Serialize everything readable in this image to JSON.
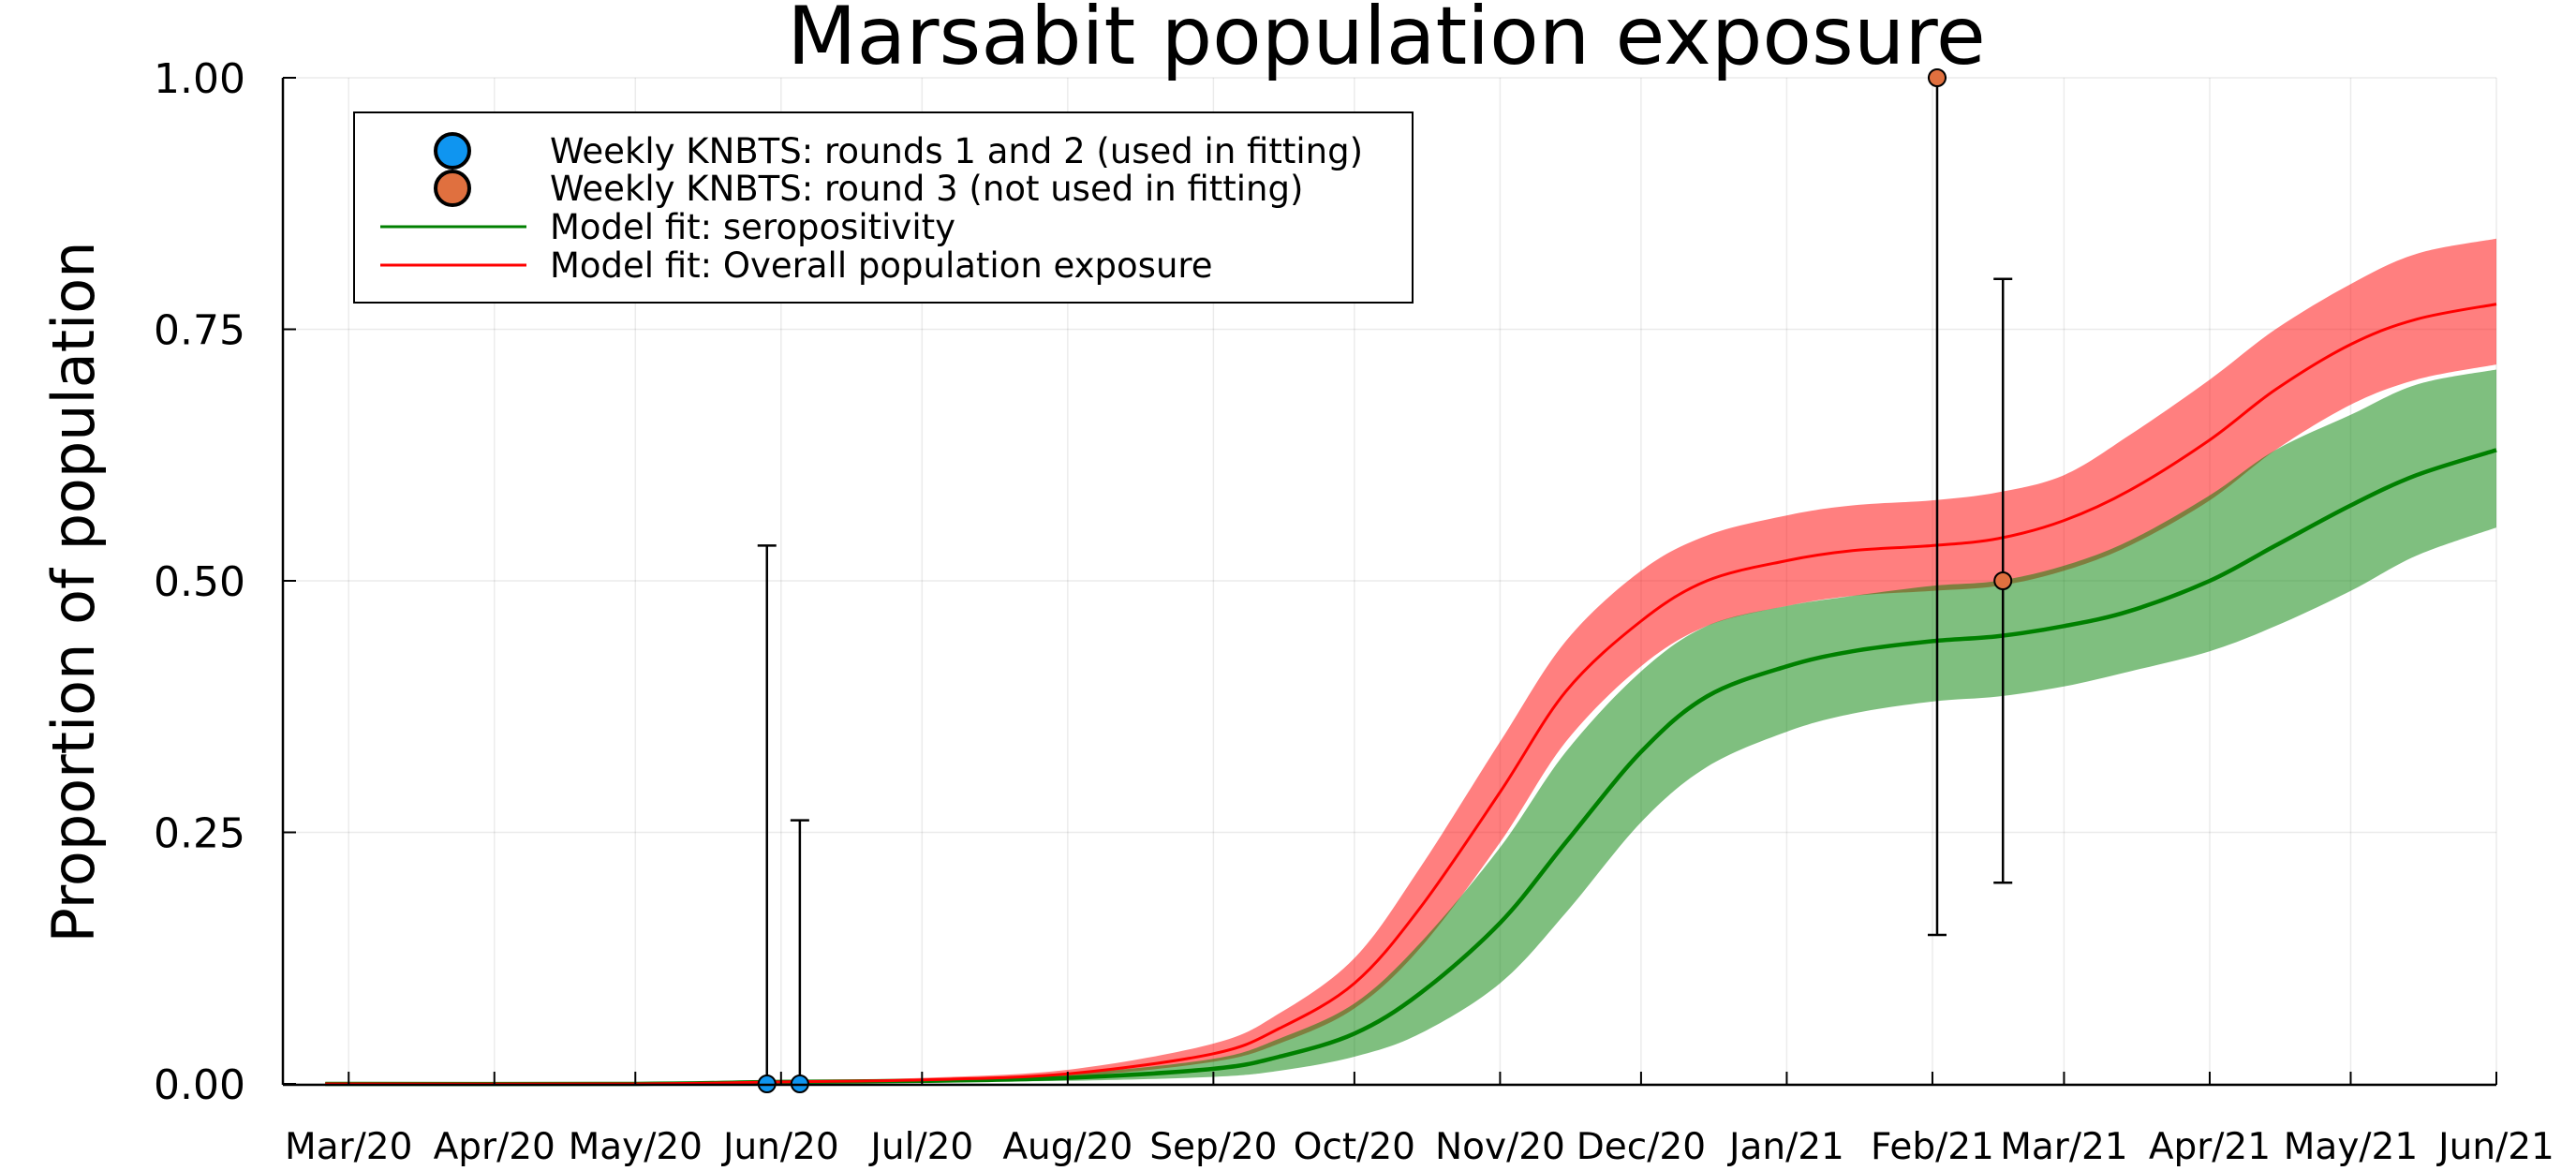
{
  "chart_data": {
    "type": "line",
    "title": "Marsabit population exposure",
    "xlabel": "",
    "ylabel": "Proportion of population",
    "xlim": [
      "2020-02-16",
      "2021-06-01"
    ],
    "ylim": [
      0,
      1
    ],
    "x_ticks": [
      "2020-03-01",
      "2020-04-01",
      "2020-05-01",
      "2020-06-01",
      "2020-07-01",
      "2020-08-01",
      "2020-09-01",
      "2020-10-01",
      "2020-11-01",
      "2020-12-01",
      "2021-01-01",
      "2021-02-01",
      "2021-03-01",
      "2021-04-01",
      "2021-05-01",
      "2021-06-01"
    ],
    "x_tick_labels": [
      "Mar/20",
      "Apr/20",
      "May/20",
      "Jun/20",
      "Jul/20",
      "Aug/20",
      "Sep/20",
      "Oct/20",
      "Nov/20",
      "Dec/20",
      "Jan/21",
      "Feb/21",
      "Mar/21",
      "Apr/21",
      "May/21",
      "Jun/21"
    ],
    "y_ticks": [
      0,
      0.25,
      0.5,
      0.75,
      1.0
    ],
    "y_tick_labels": [
      "0.00",
      "0.25",
      "0.50",
      "0.75",
      "1.00"
    ],
    "grid": true,
    "legend_position": "top-left",
    "series": [
      {
        "name": "Weekly KNBTS: rounds 1 and 2 (used in fitting)",
        "kind": "points",
        "color": "#0f95f0",
        "points": [
          {
            "x": "2020-05-29",
            "y": 0.0,
            "lo": 0.0,
            "hi": 0.535
          },
          {
            "x": "2020-06-05",
            "y": 0.0,
            "lo": 0.0,
            "hi": 0.262
          }
        ]
      },
      {
        "name": "Weekly KNBTS: round 3 (not used in fitting)",
        "kind": "points",
        "color": "#e0703f",
        "points": [
          {
            "x": "2021-02-02",
            "y": 1.0,
            "lo": 0.148,
            "hi": 1.0
          },
          {
            "x": "2021-02-16",
            "y": 0.5,
            "lo": 0.2,
            "hi": 0.8
          }
        ]
      },
      {
        "name": "Model fit: seropositivity",
        "kind": "line",
        "color": "#008000",
        "band_color": "#008000",
        "x": [
          "2020-02-25",
          "2020-05-01",
          "2020-06-01",
          "2020-07-01",
          "2020-08-01",
          "2020-09-01",
          "2020-09-15",
          "2020-10-01",
          "2020-10-15",
          "2020-11-01",
          "2020-11-15",
          "2020-12-01",
          "2020-12-15",
          "2021-01-01",
          "2021-01-15",
          "2021-02-01",
          "2021-02-15",
          "2021-03-01",
          "2021-03-15",
          "2021-04-01",
          "2021-04-15",
          "2021-05-01",
          "2021-05-15",
          "2021-06-01"
        ],
        "y": [
          0.0,
          0.0,
          0.002,
          0.003,
          0.006,
          0.015,
          0.027,
          0.05,
          0.09,
          0.16,
          0.24,
          0.33,
          0.385,
          0.415,
          0.43,
          0.44,
          0.445,
          0.455,
          0.47,
          0.5,
          0.535,
          0.575,
          0.605,
          0.63
        ],
        "lo": [
          0.0,
          0.0,
          0.001,
          0.002,
          0.003,
          0.007,
          0.013,
          0.027,
          0.05,
          0.1,
          0.17,
          0.26,
          0.315,
          0.35,
          0.368,
          0.38,
          0.385,
          0.395,
          0.41,
          0.43,
          0.455,
          0.49,
          0.525,
          0.553
        ],
        "hi": [
          0.0,
          0.0,
          0.003,
          0.005,
          0.01,
          0.025,
          0.045,
          0.08,
          0.14,
          0.235,
          0.33,
          0.41,
          0.455,
          0.475,
          0.485,
          0.495,
          0.5,
          0.515,
          0.54,
          0.585,
          0.63,
          0.665,
          0.695,
          0.71
        ]
      },
      {
        "name": "Model fit: Overall population exposure",
        "kind": "line",
        "color": "#ff0000",
        "band_color": "#ff0000",
        "x": [
          "2020-02-25",
          "2020-05-01",
          "2020-06-01",
          "2020-07-01",
          "2020-08-01",
          "2020-09-01",
          "2020-09-15",
          "2020-10-01",
          "2020-10-15",
          "2020-11-01",
          "2020-11-15",
          "2020-12-01",
          "2020-12-15",
          "2021-01-01",
          "2021-01-15",
          "2021-02-01",
          "2021-02-15",
          "2021-03-01",
          "2021-03-15",
          "2021-04-01",
          "2021-04-15",
          "2021-05-01",
          "2021-05-15",
          "2021-06-01"
        ],
        "y": [
          0.0,
          0.0,
          0.002,
          0.004,
          0.01,
          0.03,
          0.055,
          0.1,
          0.175,
          0.29,
          0.39,
          0.46,
          0.5,
          0.52,
          0.53,
          0.535,
          0.542,
          0.56,
          0.59,
          0.64,
          0.69,
          0.735,
          0.76,
          0.775
        ],
        "lo": [
          0.0,
          0.0,
          0.001,
          0.003,
          0.007,
          0.022,
          0.04,
          0.075,
          0.135,
          0.24,
          0.34,
          0.415,
          0.455,
          0.475,
          0.485,
          0.49,
          0.495,
          0.51,
          0.535,
          0.58,
          0.63,
          0.675,
          0.7,
          0.715
        ],
        "hi": [
          0.0,
          0.0,
          0.003,
          0.006,
          0.014,
          0.04,
          0.07,
          0.125,
          0.215,
          0.34,
          0.44,
          0.51,
          0.545,
          0.565,
          0.575,
          0.58,
          0.588,
          0.605,
          0.645,
          0.7,
          0.75,
          0.795,
          0.825,
          0.84
        ]
      }
    ]
  }
}
